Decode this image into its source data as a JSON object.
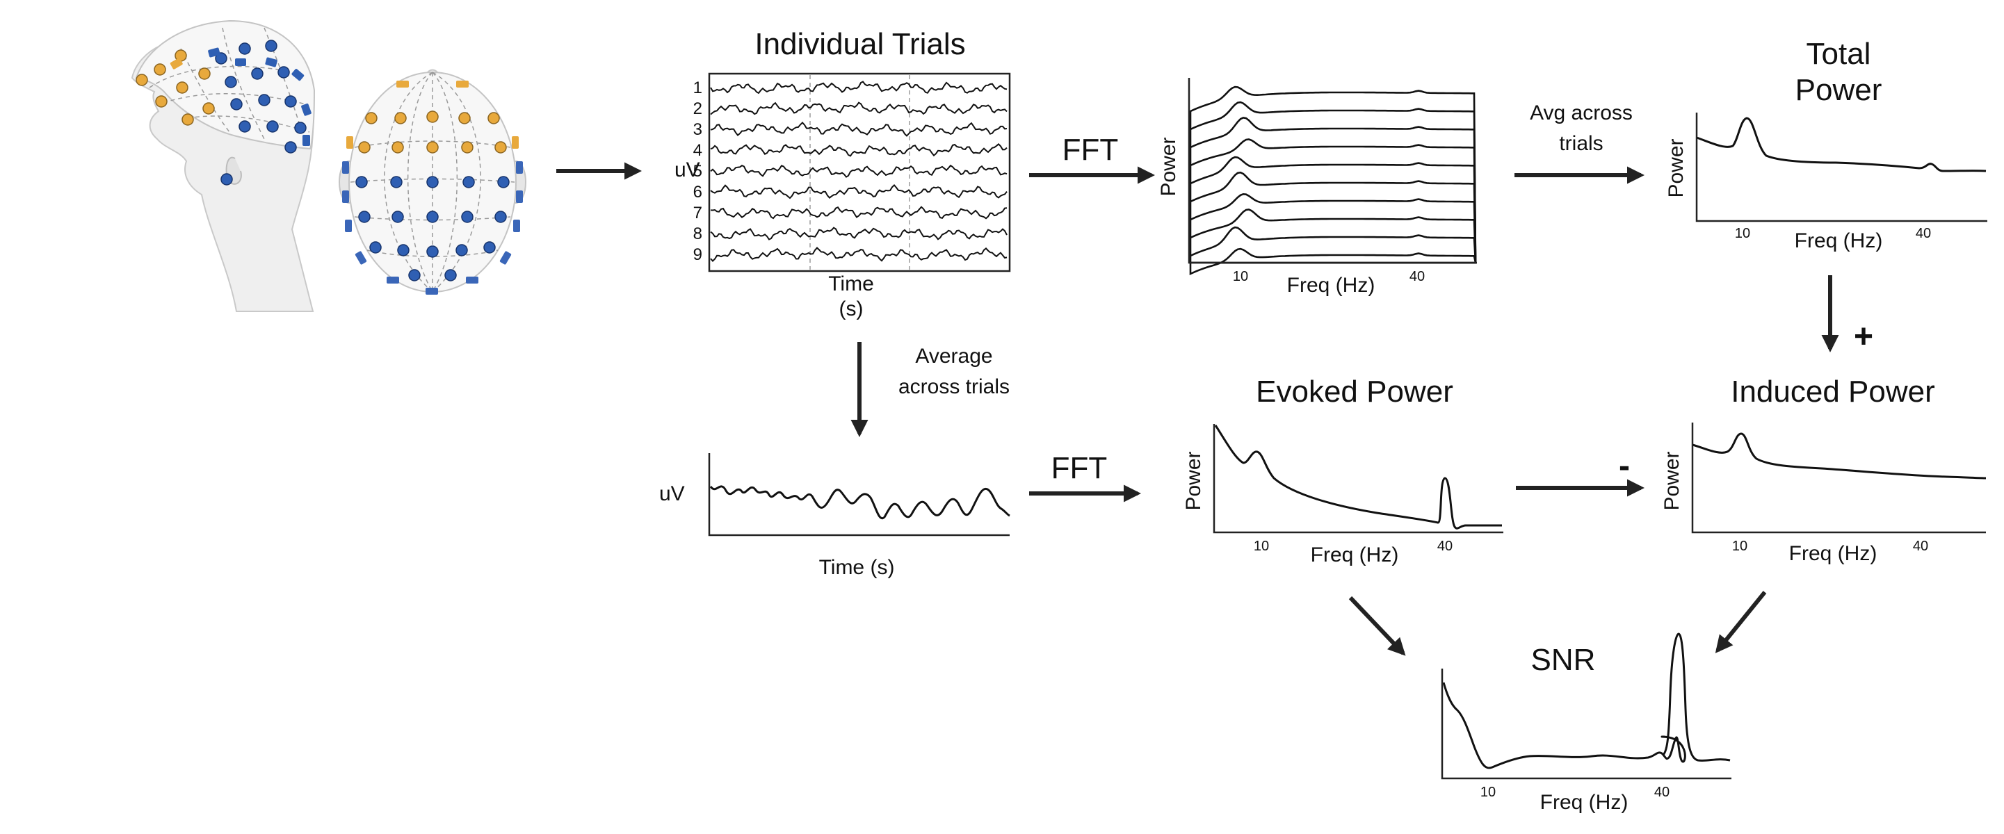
{
  "figure": {
    "trials": {
      "title": "Individual Trials",
      "ylabel": "uV",
      "xlabel_line1": "Time",
      "xlabel_line2": "(s)",
      "trial_numbers": [
        "1",
        "2",
        "3",
        "4",
        "5",
        "6",
        "7",
        "8",
        "9"
      ]
    },
    "spectrum": {
      "ylabel": "Power",
      "xlabel": "Freq (Hz)",
      "tick_10": "10",
      "tick_40": "40"
    },
    "total_power": {
      "title_line1": "Total",
      "title_line2": "Power",
      "ylabel": "Power",
      "xlabel": "Freq (Hz)",
      "tick_10": "10",
      "tick_40": "40"
    },
    "evoked_power": {
      "title": "Evoked Power",
      "ylabel": "Power",
      "xlabel": "Freq (Hz)",
      "tick_10": "10",
      "tick_40": "40"
    },
    "induced_power": {
      "title": "Induced Power",
      "ylabel": "Power",
      "xlabel": "Freq (Hz)",
      "tick_10": "10",
      "tick_40": "40"
    },
    "average": {
      "ylabel": "uV",
      "xlabel": "Time (s)"
    },
    "snr": {
      "title": "SNR",
      "xlabel": "Freq (Hz)",
      "tick_10": "10",
      "tick_40": "40"
    },
    "steps": {
      "fft_top": "FFT",
      "fft_bottom": "FFT",
      "avg_across_trials_line1": "Avg across",
      "avg_across_trials_line2": "trials",
      "average_across_trials_line1": "Average",
      "average_across_trials_line2": "across trials",
      "plus": "+",
      "minus": "-"
    },
    "electrode_colors": {
      "frontal": "#e8a93c",
      "posterior": "#2f5fb3",
      "ear_band": "#3a66b8"
    }
  }
}
